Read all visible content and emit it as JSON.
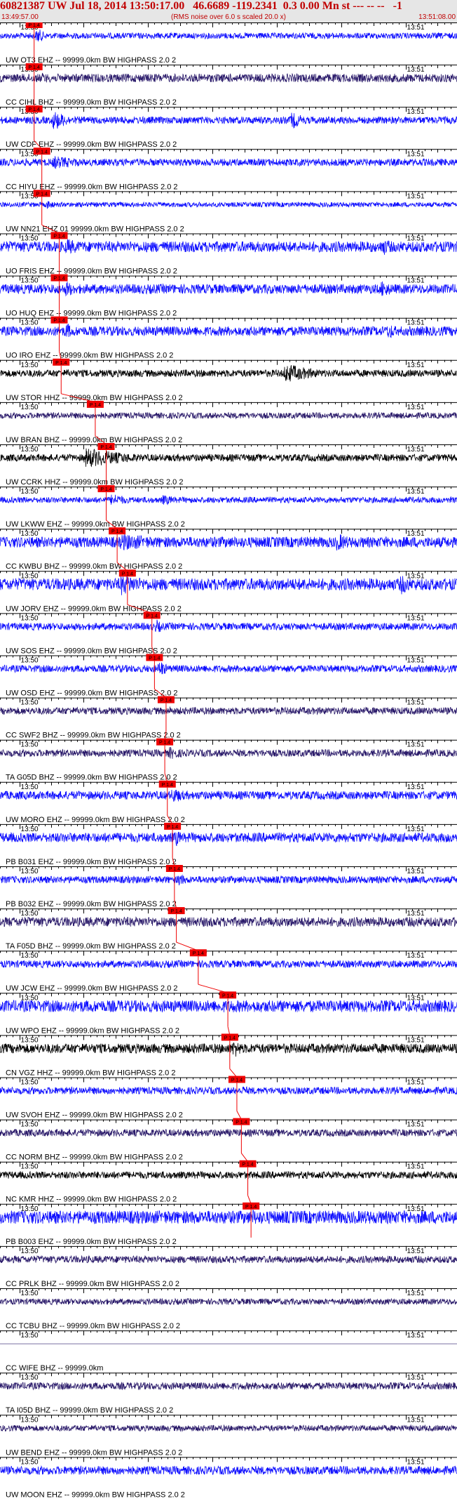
{
  "header": {
    "title": "60821387 UW Jul 18, 2014 13:50:17.00   46.6689 -119.2341  0.3 0.00 Mn st --- -- --   -1",
    "subtitle": "(RMS noise over 6.0 s scaled 20.0 x)",
    "start_time": "13:49:57.00",
    "end_time": "13:51:08.00"
  },
  "chart_data": {
    "type": "line",
    "x_range_seconds": [
      0,
      71
    ],
    "tick_labels": {
      "13:50": 3,
      "13:51": 63
    },
    "grid": true,
    "pick_label": "P 1.4",
    "colors": {
      "blue": "#1010ff",
      "purple": "#2a1a6a",
      "black": "#000000",
      "pick": "#ee0000"
    },
    "series": [
      {
        "name": "UW OT3 EHZ -- 99999.0km BW  HIGHPASS  2.0  2",
        "color": "blue",
        "pick_s": 5.3,
        "noise": 0.25,
        "bursts": [
          [
            5.5,
            0.9,
            3
          ]
        ]
      },
      {
        "name": "CC CIHL BHZ -- 99999.0km BW  HIGHPASS  2.0  2",
        "color": "purple",
        "pick_s": 5.3,
        "noise": 0.35,
        "bursts": [
          [
            6,
            0.5,
            10
          ],
          [
            35,
            0.4,
            20
          ]
        ]
      },
      {
        "name": "UW CDF EHZ -- 99999.0km BW  HIGHPASS  2.0  2",
        "color": "blue",
        "pick_s": 5.3,
        "noise": 0.3,
        "bursts": [
          [
            8,
            1.0,
            6
          ],
          [
            45,
            0.9,
            5
          ]
        ]
      },
      {
        "name": "CC HIYU EHZ -- 99999.0km BW  HIGHPASS  2.0  2",
        "color": "blue",
        "pick_s": 6.5,
        "noise": 0.3,
        "bursts": [
          [
            8,
            0.6,
            15
          ]
        ]
      },
      {
        "name": "UW NN21 EHZ 01 99999.0km BW  HIGHPASS  2.0  2",
        "color": "blue",
        "pick_s": 6.5,
        "noise": 0.2,
        "bursts": [
          [
            7,
            0.5,
            4
          ]
        ]
      },
      {
        "name": "UO FRIS EHZ -- 99999.0km BW  HIGHPASS  2.0  2",
        "color": "blue",
        "pick_s": 9.2,
        "noise": 0.45,
        "bursts": [
          [
            10,
            0.8,
            8
          ],
          [
            59,
            0.9,
            6
          ]
        ]
      },
      {
        "name": "UO HUQ EHZ -- 99999.0km BW  HIGHPASS  2.0  2",
        "color": "blue",
        "pick_s": 9.2,
        "noise": 0.4,
        "bursts": [
          [
            10,
            0.9,
            4
          ],
          [
            59,
            0.9,
            5
          ]
        ]
      },
      {
        "name": "UO IRO EHZ -- 99999.0km BW  HIGHPASS  2.0  2",
        "color": "blue",
        "pick_s": 9.2,
        "noise": 0.4,
        "bursts": [
          [
            10,
            1.0,
            3
          ],
          [
            60,
            0.9,
            4
          ]
        ]
      },
      {
        "name": "UW STOR HHZ -- 99999.0km BW  HIGHPASS  2.0  2",
        "color": "black",
        "pick_s": 9.5,
        "noise": 0.3,
        "bursts": [
          [
            10,
            0.5,
            3
          ],
          [
            44,
            0.9,
            12
          ]
        ]
      },
      {
        "name": "UW BRAN BHZ -- 99999.0km BW  HIGHPASS  2.0  2",
        "color": "purple",
        "pick_s": 14.8,
        "noise": 0.25,
        "bursts": [
          [
            15,
            0.5,
            3
          ]
        ]
      },
      {
        "name": "UW CCRK HHZ -- 99999.0km BW  HIGHPASS  2.0  2",
        "color": "black",
        "pick_s": 16.5,
        "noise": 0.3,
        "bursts": [
          [
            13,
            0.9,
            18
          ],
          [
            30,
            0.3,
            15
          ]
        ]
      },
      {
        "name": "UW LKWW EHZ -- 99999.0km BW  HIGHPASS  2.0  2",
        "color": "blue",
        "pick_s": 16.5,
        "noise": 0.25,
        "bursts": [
          [
            17,
            0.6,
            8
          ],
          [
            25,
            0.5,
            8
          ]
        ]
      },
      {
        "name": "CC KWBU BHZ -- 99999.0km BW  HIGHPASS  2.0  2",
        "color": "blue",
        "pick_s": 18.2,
        "noise": 0.45,
        "bursts": [
          [
            18.5,
            0.8,
            20
          ],
          [
            52,
            0.9,
            7
          ]
        ]
      },
      {
        "name": "UW JORV EHZ -- 99999.0km BW  HIGHPASS  2.0  2",
        "color": "blue",
        "pick_s": 19.8,
        "noise": 0.5,
        "bursts": [
          [
            18.5,
            1.0,
            12
          ],
          [
            62,
            1.0,
            6
          ]
        ]
      },
      {
        "name": "UW SOS EHZ -- 99999.0km BW  HIGHPASS  2.0  2",
        "color": "blue",
        "pick_s": 23.6,
        "noise": 0.3,
        "bursts": [
          [
            24,
            0.8,
            3
          ]
        ]
      },
      {
        "name": "UW OSD EHZ -- 99999.0km BW  HIGHPASS  2.0  2",
        "color": "blue",
        "pick_s": 24.0,
        "noise": 0.3,
        "bursts": [
          [
            24.5,
            1.0,
            3
          ]
        ]
      },
      {
        "name": "CC SWF2 BHZ -- 99999.0km BW  HIGHPASS  2.0  2",
        "color": "purple",
        "pick_s": 25.8,
        "noise": 0.3,
        "bursts": [
          [
            26,
            0.5,
            4
          ]
        ]
      },
      {
        "name": "TA G05D BHZ -- 99999.0km BW  HIGHPASS  2.0  2",
        "color": "purple",
        "pick_s": 25.6,
        "noise": 0.3,
        "bursts": [
          [
            26,
            0.6,
            8
          ]
        ]
      },
      {
        "name": "UW MORO EHZ -- 99999.0km BW  HIGHPASS  2.0  2",
        "color": "blue",
        "pick_s": 26.0,
        "noise": 0.35,
        "bursts": [
          [
            26.5,
            0.8,
            6
          ]
        ]
      },
      {
        "name": "PB B031 EHZ -- 99999.0km BW  HIGHPASS  2.0  2",
        "color": "blue",
        "pick_s": 26.8,
        "noise": 0.4,
        "bursts": [
          [
            27,
            1.0,
            3
          ]
        ]
      },
      {
        "name": "PB B032 EHZ -- 99999.0km BW  HIGHPASS  2.0  2",
        "color": "blue",
        "pick_s": 27.1,
        "noise": 0.3,
        "bursts": [
          [
            27.5,
            0.8,
            3
          ]
        ]
      },
      {
        "name": "TA F05D BHZ -- 99999.0km BW  HIGHPASS  2.0  2",
        "color": "purple",
        "pick_s": 27.4,
        "noise": 0.4,
        "bursts": [
          [
            60,
            0.4,
            10
          ]
        ]
      },
      {
        "name": "UW JCW EHZ -- 99999.0km BW  HIGHPASS  2.0  2",
        "color": "blue",
        "pick_s": 30.8,
        "noise": 0.3,
        "bursts": [
          [
            31.5,
            0.6,
            3
          ]
        ]
      },
      {
        "name": "UW WPO EHZ -- 99999.0km BW  HIGHPASS  2.0  2",
        "color": "blue",
        "pick_s": 35.4,
        "noise": 0.5,
        "bursts": [
          [
            35.5,
            0.8,
            4
          ]
        ]
      },
      {
        "name": "CN VGZ HHZ -- 99999.0km BW  HIGHPASS  2.0  2",
        "color": "black",
        "pick_s": 35.7,
        "noise": 0.4,
        "bursts": [
          [
            36,
            1.0,
            4
          ]
        ]
      },
      {
        "name": "UW SVOH EHZ -- 99999.0km BW  HIGHPASS  2.0  2",
        "color": "blue",
        "pick_s": 36.8,
        "noise": 0.3,
        "bursts": [
          [
            37.5,
            0.6,
            3
          ]
        ]
      },
      {
        "name": "CC NORM BHZ -- 99999.0km BW  HIGHPASS  2.0  2",
        "color": "purple",
        "pick_s": 37.5,
        "noise": 0.3,
        "bursts": [
          [
            38,
            0.4,
            3
          ]
        ]
      },
      {
        "name": "NC KMR HHZ -- 99999.0km BW  HIGHPASS  2.0  2",
        "color": "black",
        "pick_s": 38.5,
        "noise": 0.3,
        "bursts": [
          [
            39,
            0.4,
            3
          ]
        ]
      },
      {
        "name": "PB B003 EHZ -- 99999.0km BW  HIGHPASS  2.0  2",
        "color": "blue",
        "pick_s": 39.0,
        "noise": 0.55,
        "bursts": [
          [
            20,
            0.5,
            18
          ],
          [
            39,
            0.9,
            4
          ]
        ]
      },
      {
        "name": "CC PRLK BHZ -- 99999.0km BW  HIGHPASS  2.0  2",
        "color": "purple",
        "pick_s": null,
        "noise": 0.3,
        "bursts": []
      },
      {
        "name": "CC TCBU BHZ -- 99999.0km BW  HIGHPASS  2.0  2",
        "color": "purple",
        "pick_s": null,
        "noise": 0.25,
        "bursts": []
      },
      {
        "name": "CC WIFE BHZ -- 99999.0km",
        "color": "purple",
        "pick_s": null,
        "noise": 0.0,
        "bursts": []
      },
      {
        "name": "TA I05D BHZ -- 99999.0km BW  HIGHPASS  2.0  2",
        "color": "purple",
        "pick_s": null,
        "noise": 0.3,
        "bursts": []
      },
      {
        "name": "UW BEND EHZ -- 99999.0km BW  HIGHPASS  2.0  2",
        "color": "purple",
        "pick_s": null,
        "noise": 0.25,
        "bursts": []
      },
      {
        "name": "UW MOON EHZ -- 99999.0km BW  HIGHPASS  2.0  2",
        "color": "blue",
        "pick_s": null,
        "noise": 0.35,
        "bursts": []
      }
    ]
  }
}
